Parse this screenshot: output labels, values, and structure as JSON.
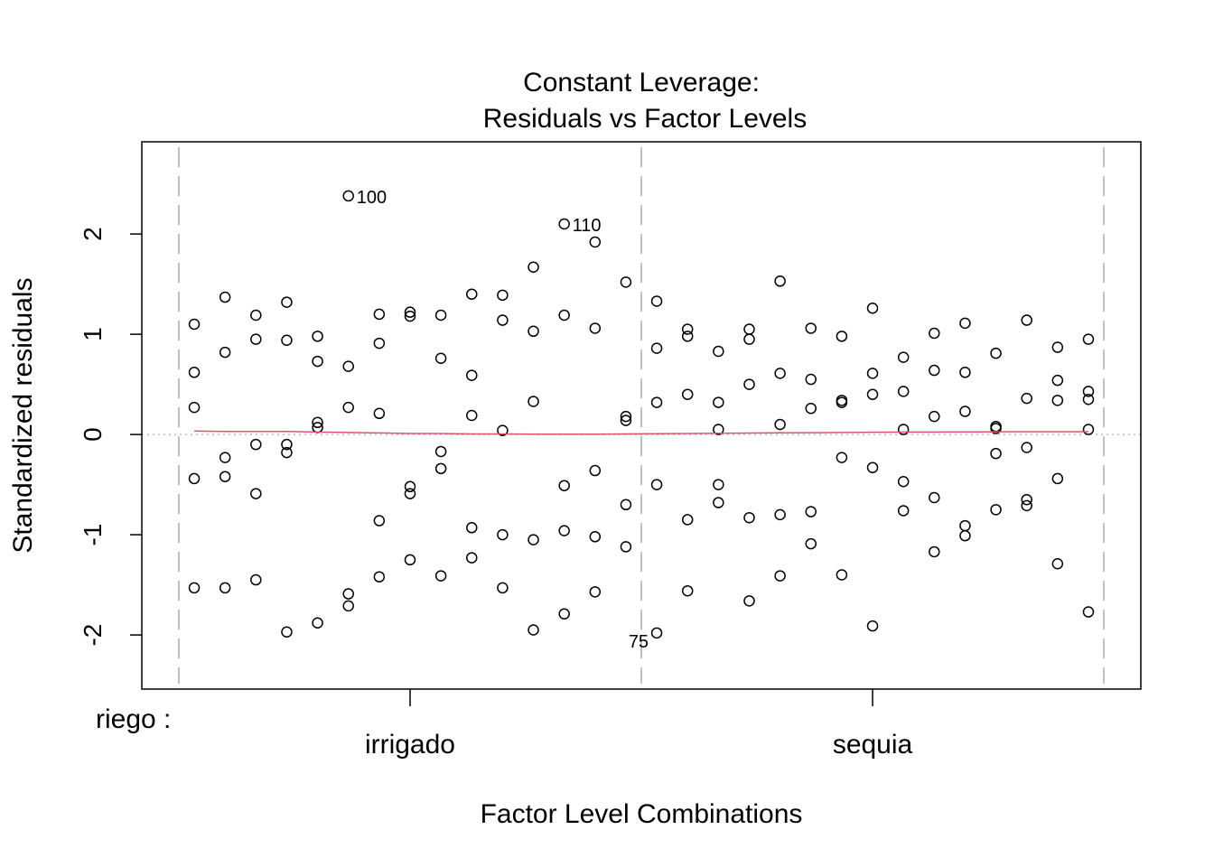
{
  "chart_data": {
    "type": "scatter",
    "title": "Constant Leverage:",
    "subtitle": "Residuals vs Factor Levels",
    "xlabel": "Factor Level Combinations",
    "ylabel": "Standardized residuals",
    "factor_name": "riego :",
    "factor_levels": [
      "irrigado",
      "sequia"
    ],
    "factor_level_columns": [
      8,
      23
    ],
    "ylim": [
      -2.54,
      2.92
    ],
    "xlim": [
      -0.7,
      31.7
    ],
    "yticks": [
      -2,
      -1,
      0,
      1,
      2
    ],
    "ytick_labels": [
      "-2",
      "-1",
      "0",
      "1",
      "2"
    ],
    "group_dividers": [
      0.5,
      15.5,
      30.5
    ],
    "smoother_color": "#DF536B",
    "columns": [
      [
        1.1,
        0.62,
        0.27,
        -0.44,
        -1.53
      ],
      [
        1.37,
        0.82,
        -0.23,
        -0.42,
        -1.53
      ],
      [
        1.19,
        0.95,
        -0.1,
        -0.59,
        -1.45
      ],
      [
        1.32,
        0.94,
        -0.1,
        -0.18,
        -1.97
      ],
      [
        0.98,
        0.73,
        0.12,
        0.07,
        -1.88
      ],
      [
        2.38,
        0.68,
        0.27,
        -1.59,
        -1.71
      ],
      [
        1.2,
        0.91,
        0.21,
        -0.86,
        -1.42
      ],
      [
        1.22,
        1.18,
        -0.52,
        -0.59,
        -1.25
      ],
      [
        1.19,
        0.76,
        -0.17,
        -0.34,
        -1.41
      ],
      [
        1.4,
        0.59,
        0.19,
        -0.93,
        -1.23
      ],
      [
        1.39,
        1.14,
        0.04,
        -1.0,
        -1.53
      ],
      [
        1.67,
        1.03,
        0.33,
        -1.05,
        -1.95
      ],
      [
        2.1,
        1.19,
        -0.51,
        -0.96,
        -1.79
      ],
      [
        1.92,
        1.06,
        -0.36,
        -1.02,
        -1.57
      ],
      [
        1.52,
        0.18,
        0.14,
        -0.7,
        -1.12
      ],
      [
        1.33,
        0.86,
        0.32,
        -0.5,
        -1.98
      ],
      [
        1.05,
        0.98,
        0.4,
        -0.85,
        -1.56
      ],
      [
        0.83,
        0.32,
        0.05,
        -0.5,
        -0.68
      ],
      [
        1.05,
        0.95,
        0.5,
        -0.83,
        -1.66
      ],
      [
        1.53,
        0.61,
        0.1,
        -0.8,
        -1.41
      ],
      [
        1.06,
        0.55,
        0.26,
        -0.77,
        -1.09
      ],
      [
        0.98,
        0.34,
        0.32,
        -0.23,
        -1.4
      ],
      [
        1.26,
        0.61,
        0.4,
        -0.33,
        -1.91
      ],
      [
        0.77,
        0.43,
        0.05,
        -0.47,
        -0.76
      ],
      [
        1.01,
        0.64,
        0.18,
        -0.63,
        -1.17
      ],
      [
        1.11,
        0.62,
        0.23,
        -0.91,
        -1.01
      ],
      [
        0.81,
        0.08,
        0.06,
        -0.19,
        -0.75
      ],
      [
        1.14,
        0.36,
        -0.13,
        -0.65,
        -0.71
      ],
      [
        0.87,
        0.54,
        0.34,
        -0.44,
        -1.29
      ],
      [
        0.95,
        0.43,
        0.35,
        0.05,
        -1.77
      ]
    ],
    "smoother": [
      0.035,
      0.03,
      0.03,
      0.03,
      0.025,
      0.02,
      0.015,
      0.01,
      0.01,
      0.005,
      0.005,
      0.003,
      0.003,
      0.003,
      0.005,
      0.008,
      0.01,
      0.012,
      0.014,
      0.016,
      0.018,
      0.02,
      0.022,
      0.024,
      0.025,
      0.026,
      0.027,
      0.028,
      0.028,
      0.028
    ],
    "annotations": [
      {
        "label": "100",
        "column": 6,
        "value": 2.38,
        "side": "right"
      },
      {
        "label": "110",
        "column": 13,
        "value": 2.1,
        "side": "right"
      },
      {
        "label": "75",
        "column": 16,
        "value": -1.98,
        "side": "left"
      }
    ]
  }
}
